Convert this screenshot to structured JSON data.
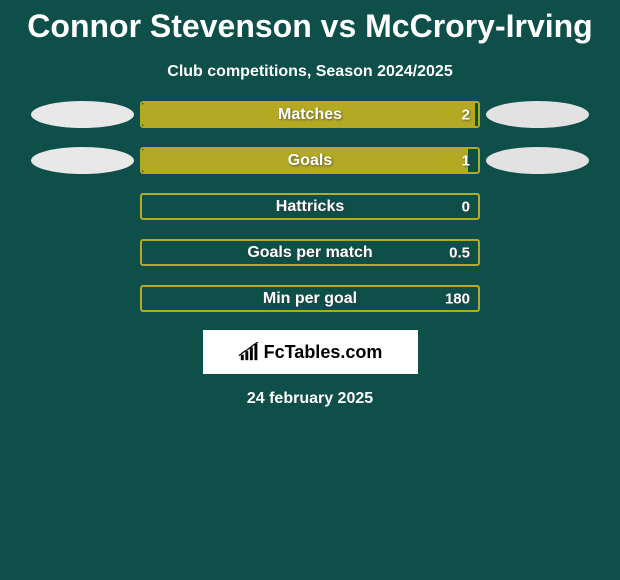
{
  "title": "Connor Stevenson vs McCrory-Irving",
  "subtitle": "Club competitions, Season 2024/2025",
  "date": "24 february 2025",
  "logo_text": "FcTables.com",
  "colors": {
    "background": "#0e4f4a",
    "text_primary": "#ffffff",
    "bar_fill": "#b4a922",
    "bar_track_border": "#b4a922",
    "ellipse_left": "#e8e8e8",
    "ellipse_right": "#e2e2e2",
    "logo_black": "#000000"
  },
  "rows": [
    {
      "label": "Matches",
      "value": "2",
      "left_fill_pct": 99,
      "right_fill_pct": 0,
      "show_left_ellipse": true,
      "show_right_ellipse": true
    },
    {
      "label": "Goals",
      "value": "1",
      "left_fill_pct": 97,
      "right_fill_pct": 0,
      "show_left_ellipse": true,
      "show_right_ellipse": true
    },
    {
      "label": "Hattricks",
      "value": "0",
      "left_fill_pct": 0,
      "right_fill_pct": 0,
      "show_left_ellipse": false,
      "show_right_ellipse": false
    },
    {
      "label": "Goals per match",
      "value": "0.5",
      "left_fill_pct": 0,
      "right_fill_pct": 0,
      "show_left_ellipse": false,
      "show_right_ellipse": false
    },
    {
      "label": "Min per goal",
      "value": "180",
      "left_fill_pct": 0,
      "right_fill_pct": 0,
      "show_left_ellipse": false,
      "show_right_ellipse": false
    }
  ]
}
